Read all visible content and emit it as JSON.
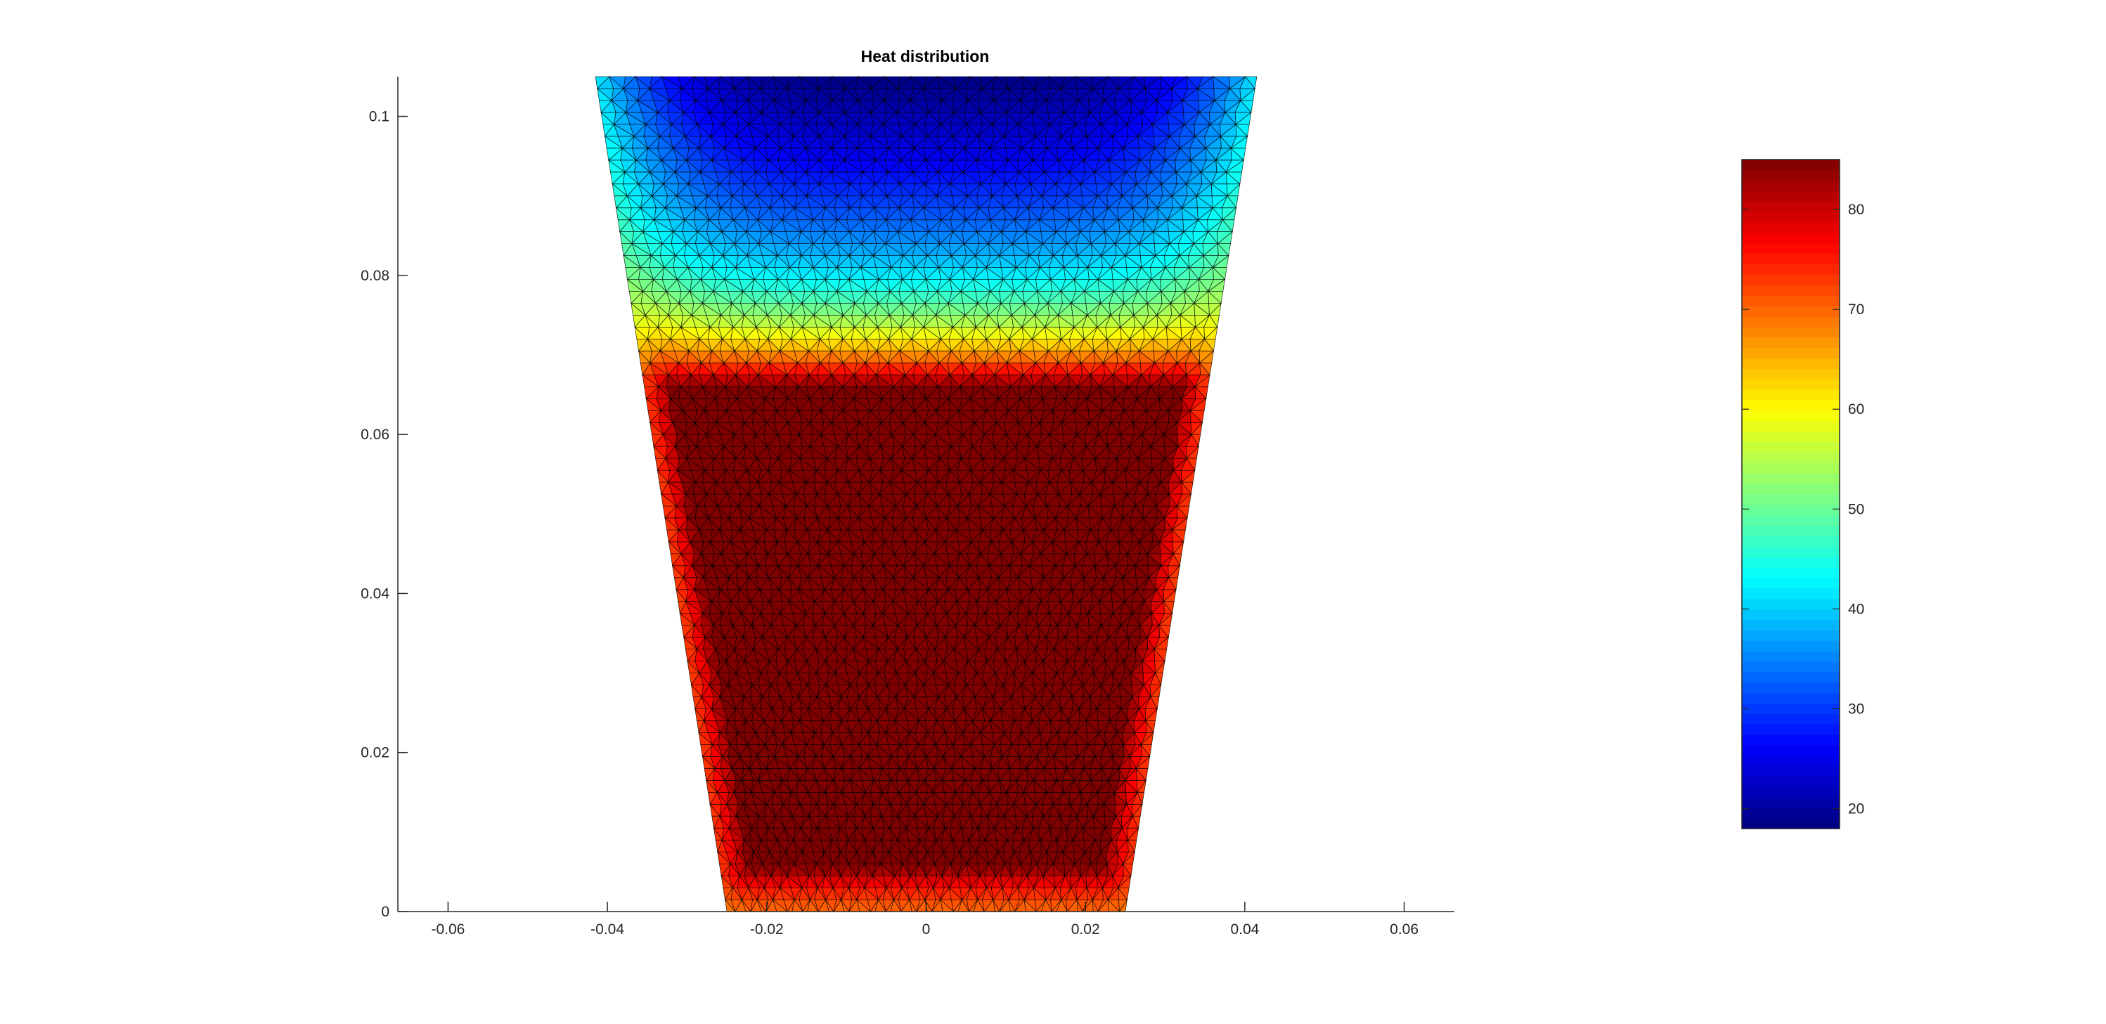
{
  "chart_data": {
    "type": "heatmap",
    "title": "Heat distribution",
    "xlabel": "",
    "ylabel": "",
    "xlim": [
      -0.0663,
      0.0663
    ],
    "ylim": [
      0,
      0.105
    ],
    "xticks": [
      -0.06,
      -0.04,
      -0.02,
      0,
      0.02,
      0.04,
      0.06
    ],
    "xtick_labels": [
      "-0.06",
      "-0.04",
      "-0.02",
      "0",
      "0.02",
      "0.04",
      "0.06"
    ],
    "yticks": [
      0,
      0.02,
      0.04,
      0.06,
      0.08,
      0.1
    ],
    "ytick_labels": [
      "0",
      "0.02",
      "0.04",
      "0.06",
      "0.08",
      "0.1"
    ],
    "grid": false,
    "mesh": "triangular, black edges",
    "domain_outer": [
      [
        -0.025,
        0
      ],
      [
        0.025,
        0
      ],
      [
        0.0415,
        0.105
      ],
      [
        -0.0415,
        0.105
      ]
    ],
    "heat_source": [
      [
        -0.022,
        0.0057
      ],
      [
        0.022,
        0.0057
      ],
      [
        0.032,
        0.066
      ],
      [
        -0.032,
        0.066
      ]
    ],
    "field": {
      "heat_source_value": 85,
      "top_center_value": 18,
      "top_side_value": 42,
      "bottom_value": 57,
      "side_value": 52
    },
    "colorbar": {
      "colormap": "jet",
      "clim": [
        18,
        85
      ],
      "ticks": [
        20,
        30,
        40,
        50,
        60,
        70,
        80
      ],
      "tick_labels": [
        "20",
        "30",
        "40",
        "50",
        "60",
        "70",
        "80"
      ],
      "placement": "right"
    }
  }
}
